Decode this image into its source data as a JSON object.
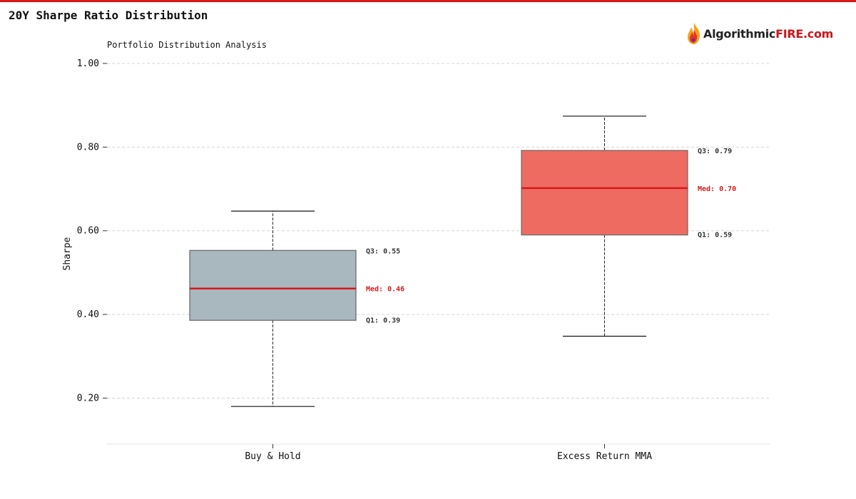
{
  "page": {
    "title": "20Y Sharpe Ratio Distribution"
  },
  "logo": {
    "text_dark": "Algorithmic",
    "text_red": "FIRE.com",
    "icon": "flame-icon"
  },
  "colors": {
    "accent": "#d7191c",
    "box_buy_hold": "#a9b7bf",
    "box_mma": "#ee6b62",
    "median": "#d7191c"
  },
  "chart_data": {
    "type": "box",
    "title": "Portfolio Distribution Analysis",
    "xlabel": "",
    "ylabel": "Sharpe",
    "ylim": [
      0.09,
      1.0
    ],
    "yticks": [
      0.2,
      0.4,
      0.6,
      0.8,
      1.0
    ],
    "ytick_labels": [
      "0.20",
      "0.40",
      "0.60",
      "0.80",
      "1.00"
    ],
    "grid": true,
    "categories": [
      "Buy & Hold",
      "Excess Return MMA"
    ],
    "series": [
      {
        "category": "Buy & Hold",
        "min": 0.18,
        "q1": 0.386,
        "median": 0.462,
        "q3": 0.553,
        "max": 0.647,
        "labels": {
          "q3": "Q3: 0.55",
          "median": "Med: 0.46",
          "q1": "Q1: 0.39"
        }
      },
      {
        "category": "Excess Return MMA",
        "min": 0.348,
        "q1": 0.59,
        "median": 0.702,
        "q3": 0.792,
        "max": 0.874,
        "labels": {
          "q3": "Q3: 0.79",
          "median": "Med: 0.70",
          "q1": "Q1: 0.59"
        }
      }
    ]
  }
}
